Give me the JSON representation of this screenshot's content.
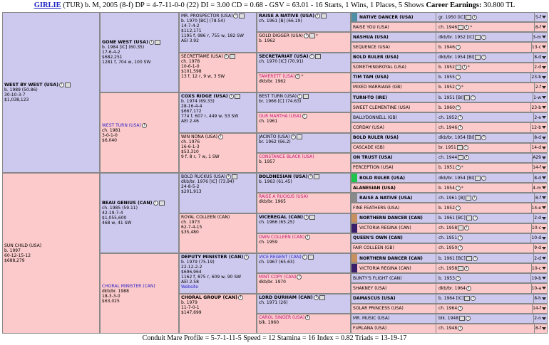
{
  "header": {
    "name": "GIRLIE",
    "details": "(TUR) b. M, 2005 (8-f) DP = 4-7-11-0-0 (22) DI = 3.00 CD = 0.68 - GSV = 63.01 - 16 Starts, 1 Wins, 1 Places, 5 Shows",
    "earn_label": "Career Earnings:",
    "earn_value": "30.800 TL"
  },
  "footer": "Conduit Mare Profile = 5-7-1-11-5 Speed = 12 Stamina = 16 Index = 0.82 Triads = 13-19-17",
  "g1": [
    {
      "sex": "m",
      "lines": [
        [
          "n",
          "WEST BY WEST (USA)"
        ],
        [
          "",
          "b. 1989 (50.86)"
        ],
        [
          "",
          "30-10-3-7"
        ],
        [
          "",
          "$1,038,123"
        ]
      ],
      "i": true,
      "s": true
    },
    {
      "sex": "f",
      "lines": [
        [
          "",
          "SUN CHILD (USA)"
        ],
        [
          "",
          "b. 1997"
        ],
        [
          "",
          "60-12-15-12"
        ],
        [
          "",
          "$688,279"
        ]
      ]
    }
  ],
  "g2": [
    {
      "sex": "m",
      "lines": [
        [
          "n",
          "GONE WEST (USA)"
        ],
        [
          "",
          "b. 1984 [IC] (60.35)"
        ],
        [
          "",
          "17-6-4-2"
        ],
        [
          "",
          "$682,251"
        ],
        [
          "",
          "1281 f, 704 w, 100 SW"
        ]
      ],
      "i": true,
      "s": true
    },
    {
      "sex": "f",
      "lines": [
        [
          "lnk",
          "WEST TURN (USA)"
        ],
        [
          "",
          "ch. 1981"
        ],
        [
          "",
          "3-0-1-0"
        ],
        [
          "",
          "$6,040"
        ]
      ],
      "i": true
    },
    {
      "sex": "m",
      "lines": [
        [
          "n",
          "BEAU GENIUS (CAN)"
        ],
        [
          "",
          "ch. 1985 (59.11)"
        ],
        [
          "",
          "42-19-7-4"
        ],
        [
          "",
          "$1,055,600"
        ],
        [
          "",
          "468 w, 41 SW"
        ]
      ],
      "i": true,
      "s": true
    },
    {
      "sex": "f",
      "lines": [
        [
          "lnk",
          "CHORAL MINISTER (CAN)"
        ],
        [
          "",
          "dkb/br. 1988"
        ],
        [
          "",
          "18-3-3-0"
        ],
        [
          "",
          "$63,025"
        ]
      ]
    }
  ],
  "g3": [
    {
      "sex": "m",
      "lines": [
        [
          "",
          "MR. PROSPECTOR (USA)"
        ],
        [
          "",
          "b. 1970 [BC] (78.54)"
        ],
        [
          "",
          "14-7-4-2"
        ],
        [
          "",
          "$112,171"
        ],
        [
          "",
          "1195 f, 986 r, 755 w, 182 SW"
        ],
        [
          "",
          "AEI 3.92"
        ]
      ],
      "i": true,
      "s": true
    },
    {
      "sex": "f",
      "lines": [
        [
          "",
          "SECRETTAME (USA)"
        ],
        [
          "",
          "ch. 1978"
        ],
        [
          "",
          "10-6-1-0"
        ],
        [
          "",
          "$101,598"
        ],
        [
          "",
          "13 f, 12 r, 9 w, 3 SW"
        ]
      ],
      "i": true,
      "s": true
    },
    {
      "sex": "m",
      "lines": [
        [
          "n",
          "COXS RIDGE (USA)"
        ],
        [
          "",
          "b. 1974 (69.33)"
        ],
        [
          "",
          "28-16-4-4"
        ],
        [
          "",
          "$667,172"
        ],
        [
          "",
          "774 f, 607 r, 449 w, 53 SW"
        ],
        [
          "",
          "AEI 2.46"
        ]
      ],
      "i": true,
      "s": true
    },
    {
      "sex": "f",
      "lines": [
        [
          "",
          "WIN NONA (USA)"
        ],
        [
          "",
          "ch. 1976"
        ],
        [
          "",
          "16-6-1-3"
        ],
        [
          "",
          "$53,310"
        ],
        [
          "",
          "9 f, 8 r, 7 w, 1 SW"
        ]
      ],
      "i": true
    },
    {
      "sex": "m",
      "lines": [
        [
          "",
          "BOLD RUCKUS (USA)"
        ],
        [
          "",
          "dkb/br. 1976 [IC] (73.94)"
        ],
        [
          "",
          "24-8-5-2"
        ],
        [
          "",
          "$201,913"
        ]
      ],
      "i": true,
      "s": true
    },
    {
      "sex": "f",
      "lines": [
        [
          "",
          "ROYAL COLLEEN (CAN)"
        ],
        [
          "",
          "ch. 1973"
        ],
        [
          "",
          "62-7-4-15"
        ],
        [
          "",
          "$35,480"
        ]
      ]
    },
    {
      "sex": "m",
      "lines": [
        [
          "n",
          "DEPUTY MINISTER (CAN)"
        ],
        [
          "",
          "b. 1979 (75.19)"
        ],
        [
          "",
          "22-12-2-2"
        ],
        [
          "",
          "$696,964"
        ],
        [
          "",
          "1162 f, 875 r, 609 w, 90 SW"
        ],
        [
          "",
          "AEI 2.58"
        ],
        [
          "lnk",
          "Website"
        ]
      ],
      "i": true
    },
    {
      "sex": "f",
      "lines": [
        [
          "n",
          "CHORAL GROUP (CAN)"
        ],
        [
          "",
          "b. 1979"
        ],
        [
          "",
          "11-7-0-1"
        ],
        [
          "",
          "$147,699"
        ]
      ],
      "i": true
    }
  ],
  "g4": [
    {
      "sex": "m",
      "lines": [
        [
          "n",
          "RAISE A NATIVE (USA)"
        ],
        [
          "",
          "ch. 1961 [B] (66.19)"
        ]
      ],
      "i": true,
      "s": true
    },
    {
      "sex": "f",
      "lines": [
        [
          "",
          "GOLD DIGGER (USA)"
        ],
        [
          "",
          "b. 1962"
        ]
      ],
      "i": true,
      "s": true,
      "a": true
    },
    {
      "sex": "m",
      "lines": [
        [
          "n",
          "SECRETARIAT (USA)"
        ],
        [
          "",
          "ch. 1970 [IC] (70.91)"
        ]
      ],
      "i": true,
      "s": true
    },
    {
      "sex": "f",
      "lines": [
        [
          "fem",
          "TAMERETT (USA)"
        ],
        [
          "",
          "dkb/br. 1962"
        ]
      ],
      "i": true,
      "a": true
    },
    {
      "sex": "m",
      "lines": [
        [
          "",
          "BEST TURN (USA)"
        ],
        [
          "",
          "br. 1966 [C] (74.63)"
        ]
      ],
      "i": true,
      "s": true
    },
    {
      "sex": "f",
      "lines": [
        [
          "fem",
          "OUR MARTHA (USA)"
        ],
        [
          "",
          "ch. 1961"
        ]
      ],
      "i": true
    },
    {
      "sex": "m",
      "lines": [
        [
          "",
          "JACINTO (USA)"
        ],
        [
          "",
          "br. 1962 (66.2)"
        ]
      ],
      "i": true,
      "s": true
    },
    {
      "sex": "f",
      "lines": [
        [
          "fem",
          "CONSTANCE BLACK (USA)"
        ],
        [
          "",
          "b. 1957"
        ]
      ]
    },
    {
      "sex": "m",
      "lines": [
        [
          "n",
          "BOLDNESIAN (USA)"
        ],
        [
          "",
          "b. 1963 (61.45)"
        ]
      ],
      "i": true,
      "s": true
    },
    {
      "sex": "f",
      "lines": [
        [
          "fem",
          "RAISE A RUCKUS (USA)"
        ],
        [
          "",
          "dkb/br. 1965"
        ]
      ]
    },
    {
      "sex": "m",
      "lines": [
        [
          "n",
          "VICEREGAL (CAN)"
        ],
        [
          "",
          "ch. 1966 (65.25)"
        ]
      ],
      "i": true,
      "s": true
    },
    {
      "sex": "f",
      "lines": [
        [
          "fem",
          "OWN COLLEEN (CAN)"
        ],
        [
          "",
          "ch. 1959"
        ]
      ],
      "i": true
    },
    {
      "sex": "m",
      "lines": [
        [
          "lnk",
          "VICE REGENT (CAN)"
        ],
        [
          "",
          "ch. 1967 (65.63)"
        ]
      ],
      "i": true,
      "s": true
    },
    {
      "sex": "f",
      "lines": [
        [
          "fem",
          "MINT COPY (CAN)"
        ],
        [
          "",
          "dkb/br. 1970"
        ]
      ],
      "i": true
    },
    {
      "sex": "m",
      "lines": [
        [
          "n",
          "LORD DURHAM (CAN)"
        ],
        [
          "",
          "ch. 1971 (26)"
        ]
      ],
      "i": true,
      "s": true
    },
    {
      "sex": "f",
      "lines": [
        [
          "fem",
          "CAROL SINGER (USA)"
        ],
        [
          "",
          "blk. 1960"
        ]
      ],
      "i": true
    }
  ],
  "g5": [
    {
      "sex": "m",
      "bar": "#4e8fa6",
      "name": "NATIVE DANCER (USA)",
      "nt": "n",
      "info": "gr. 1950 [IC]",
      "s": true,
      "ctr": "5-f"
    },
    {
      "sex": "f",
      "name": "RAISE YOU (USA)",
      "nt": "",
      "info": "ch. 1946",
      "s": true,
      "a": true,
      "ctr": "8-f"
    },
    {
      "sex": "m",
      "name": "NASHUA (USA)",
      "nt": "n",
      "info": "dkb/br. 1952 [IC]",
      "s": true,
      "ctr": "3-m"
    },
    {
      "sex": "f",
      "name": "SEQUENCE (USA)",
      "nt": "",
      "info": "b. 1946",
      "ctr": "13-c"
    },
    {
      "sex": "m",
      "name": "BOLD RULER (USA)",
      "nt": "n",
      "info": "dkb/br. 1954 [BI]",
      "s": true,
      "ctr": "8-d"
    },
    {
      "sex": "f",
      "name": "SOMETHINGROYAL (USA)",
      "nt": "fem",
      "info": "b. 1952",
      "s": true,
      "a": true,
      "ctr": "2-d"
    },
    {
      "sex": "m",
      "name": "TIM TAM (USA)",
      "nt": "n",
      "info": "b. 1955",
      "ctr": "23-b"
    },
    {
      "sex": "f",
      "name": "MIXED MARRIAGE (GB)",
      "nt": "fem",
      "info": "b. 1952",
      "a": true,
      "ctr": "2-f"
    },
    {
      "sex": "m",
      "name": "TURN-TO (IRE)",
      "nt": "n",
      "info": "b. 1951 [BI]",
      "s": true,
      "ctr": "1-w"
    },
    {
      "sex": "f",
      "name": "SWEET CLEMENTINE (USA)",
      "nt": "fem",
      "info": "b. 1960",
      "ctr": "23-b"
    },
    {
      "sex": "m",
      "name": "BALLYDONNELL (GB)",
      "nt": "",
      "info": "ch. 1952",
      "ctr": "2-e"
    },
    {
      "sex": "f",
      "name": "CORDAY (USA)",
      "nt": "fem",
      "info": "ch. 1946",
      "ctr": "12-b"
    },
    {
      "sex": "m",
      "name": "BOLD RULER (USA)",
      "nt": "n",
      "info": "dkb/br. 1954 [BI]",
      "s": true,
      "ctr": "8-d"
    },
    {
      "sex": "f",
      "name": "CASCADE (GB)",
      "nt": "",
      "info": "br. 1951",
      "s": true,
      "ctr": "14-d"
    },
    {
      "sex": "m",
      "name": "ON TRUST (USA)",
      "nt": "n",
      "info": "ch. 1944",
      "s": true,
      "ctr": "A29"
    },
    {
      "sex": "f",
      "name": "PERCEPTION (USA)",
      "nt": "fem",
      "info": "b. 1951",
      "a": true,
      "ctr": "14-f"
    },
    {
      "sex": "m",
      "bar": "#1fc44a",
      "name": "BOLD RULER (USA)",
      "nt": "n",
      "info": "dkb/br. 1954 [BI]",
      "s": true,
      "ctr": "8-d"
    },
    {
      "sex": "f",
      "name": "ALANESIAN (USA)",
      "nt": "n",
      "info": "b. 1954",
      "a": true,
      "ctr": "4-m"
    },
    {
      "sex": "m",
      "bar": "#8a8a8a",
      "name": "RAISE A NATIVE (USA)",
      "nt": "n",
      "info": "ch. 1961 [B]",
      "s": true,
      "ctr": "8-f"
    },
    {
      "sex": "f",
      "name": "FINE FEATHERS (USA)",
      "nt": "",
      "info": "b. 1952",
      "ctr": "14-e"
    },
    {
      "sex": "m",
      "bar": "#c8905e",
      "name": "NORTHERN DANCER (CAN)",
      "nt": "n",
      "info": "b. 1961 [BC]",
      "s": true,
      "ctr": "2-d"
    },
    {
      "sex": "f",
      "bar": "#3a1f6b",
      "name": "VICTORIA REGINA (CAN)",
      "nt": "",
      "info": "ch. 1958",
      "s": true,
      "ctr": "10-c"
    },
    {
      "sex": "m",
      "name": "QUEEN'S OWN (CAN)",
      "nt": "n",
      "info": "ch. 1951",
      "ctr": "10-d"
    },
    {
      "sex": "f",
      "name": "FAIR COLLEEN (GB)",
      "nt": "",
      "info": "ch. 1950",
      "ctr": "9-d"
    },
    {
      "sex": "m",
      "bar": "#c8905e",
      "name": "NORTHERN DANCER (CAN)",
      "nt": "n",
      "info": "b. 1961 [BC]",
      "s": true,
      "ctr": "2-d"
    },
    {
      "sex": "f",
      "bar": "#3a1f6b",
      "name": "VICTORIA REGINA (CAN)",
      "nt": "",
      "info": "ch. 1958",
      "s": true,
      "ctr": "10-c"
    },
    {
      "sex": "m",
      "name": "BUNTY'S FLIGHT (CAN)",
      "nt": "",
      "info": "b. 1953",
      "ctr": "19-b"
    },
    {
      "sex": "f",
      "name": "SHAKNEY (USA)",
      "nt": "fem",
      "info": "dkb/br. 1964",
      "ctr": "10-a"
    },
    {
      "sex": "m",
      "name": "DAMASCUS (USA)",
      "nt": "n",
      "info": "b. 1964 [IC]",
      "s": true,
      "ctr": "8-h"
    },
    {
      "sex": "f",
      "name": "SOLAR PRINCESS (USA)",
      "nt": "fem",
      "info": "ch. 1964",
      "ctr": "14-f"
    },
    {
      "sex": "m",
      "name": "MR. MUSIC (USA)",
      "nt": "lnk",
      "info": "blk. 1948",
      "s": true,
      "ctr": "2-n"
    },
    {
      "sex": "f",
      "name": "FURLANA (USA)",
      "nt": "fem",
      "info": "ch. 1948",
      "ctr": "8-f"
    }
  ]
}
